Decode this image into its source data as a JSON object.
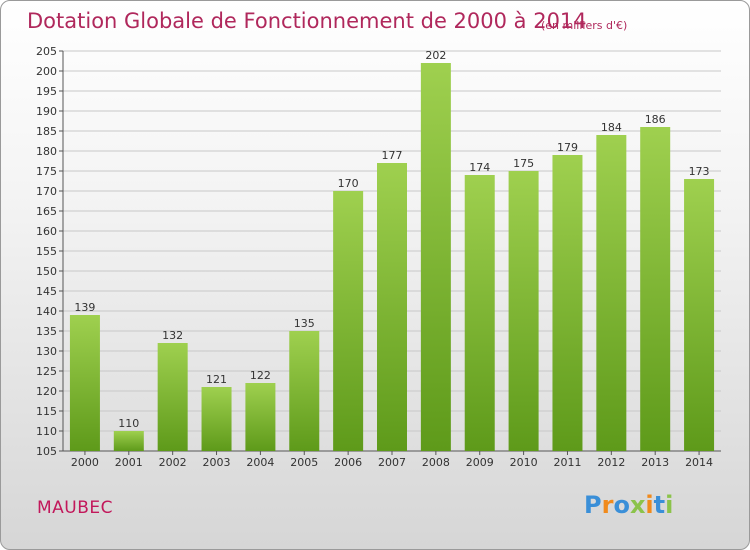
{
  "title": "Dotation Globale de Fonctionnement de 2000 à 2014",
  "subtitle": "(en milliers d'€)",
  "commune": "MAUBEC",
  "logo": {
    "text": "Proxiti",
    "colors": [
      "#3a8fd8",
      "#f08a1c",
      "#3a8fd8",
      "#8bc34a",
      "#f08a1c",
      "#3a8fd8",
      "#8bc34a"
    ]
  },
  "colors": {
    "bar_top": "#9fd04f",
    "bar_bottom": "#5e9a1a",
    "title": "#b0285c",
    "grid": "#c8c8c8"
  },
  "chart_data": {
    "type": "bar",
    "categories": [
      "2000",
      "2001",
      "2002",
      "2003",
      "2004",
      "2005",
      "2006",
      "2007",
      "2008",
      "2009",
      "2010",
      "2011",
      "2012",
      "2013",
      "2014"
    ],
    "values": [
      139,
      110,
      132,
      121,
      122,
      135,
      170,
      177,
      202,
      174,
      175,
      179,
      184,
      186,
      173
    ],
    "ylim": [
      105,
      205
    ],
    "yticks": [
      105,
      110,
      115,
      120,
      125,
      130,
      135,
      140,
      145,
      150,
      155,
      160,
      165,
      170,
      175,
      180,
      185,
      190,
      195,
      200,
      205
    ],
    "grid": true
  }
}
